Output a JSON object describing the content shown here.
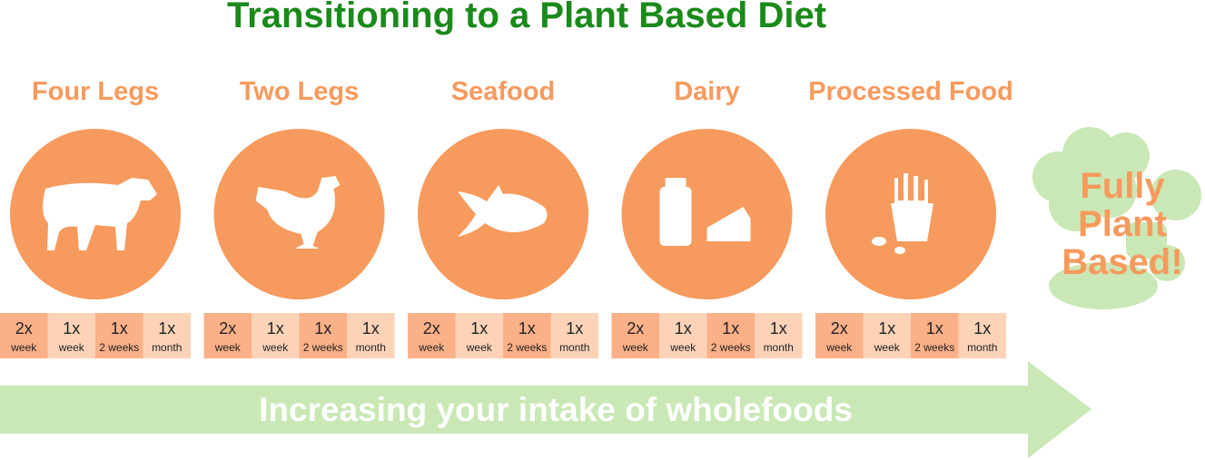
{
  "title": "Transitioning to a Plant Based Diet",
  "stages": [
    {
      "label": "Four Legs",
      "frequencies": [
        {
          "count": "2x",
          "period": "week"
        },
        {
          "count": "1x",
          "period": "week"
        },
        {
          "count": "1x",
          "period": "2 weeks"
        },
        {
          "count": "1x",
          "period": "month"
        }
      ]
    },
    {
      "label": "Two Legs",
      "frequencies": [
        {
          "count": "2x",
          "period": "week"
        },
        {
          "count": "1x",
          "period": "week"
        },
        {
          "count": "1x",
          "period": "2 weeks"
        },
        {
          "count": "1x",
          "period": "month"
        }
      ]
    },
    {
      "label": "Seafood",
      "frequencies": [
        {
          "count": "2x",
          "period": "week"
        },
        {
          "count": "1x",
          "period": "week"
        },
        {
          "count": "1x",
          "period": "2 weeks"
        },
        {
          "count": "1x",
          "period": "month"
        }
      ]
    },
    {
      "label": "Dairy",
      "frequencies": [
        {
          "count": "2x",
          "period": "week"
        },
        {
          "count": "1x",
          "period": "week"
        },
        {
          "count": "1x",
          "period": "2 weeks"
        },
        {
          "count": "1x",
          "period": "month"
        }
      ]
    },
    {
      "label": "Processed Food",
      "frequencies": [
        {
          "count": "2x",
          "period": "week"
        },
        {
          "count": "1x",
          "period": "week"
        },
        {
          "count": "1x",
          "period": "2 weeks"
        },
        {
          "count": "1x",
          "period": "month"
        }
      ]
    }
  ],
  "final": {
    "lines": [
      "Fully",
      "Plant",
      "Based!"
    ]
  },
  "arrow": {
    "label": "Increasing your intake of wholefoods"
  }
}
